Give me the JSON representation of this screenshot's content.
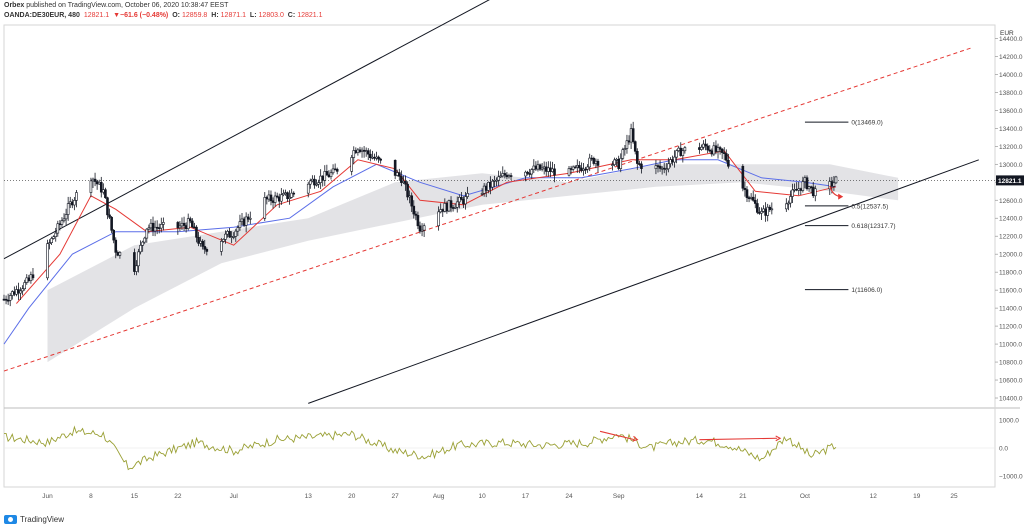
{
  "header": {
    "publisher": "Orbex",
    "published_text": "published on TradingView.com, October 06, 2020 10:38:47 EEST",
    "symbol": "OANDA:DE30EUR, 480",
    "last": "12821.1",
    "change": "▼−61.6 (−0.48%)",
    "open_label": "O:",
    "open": "12859.8",
    "high_label": "H:",
    "high": "12871.1",
    "low_label": "L:",
    "low": "12803.0",
    "close_label": "C:",
    "close": "12821.1"
  },
  "footer": {
    "brand": "TradingView"
  },
  "colors": {
    "candle": "#131722",
    "tenkan": "#e53935",
    "kijun": "#5b6ee8",
    "cloud": "#d9dadd",
    "redChannel": "#e53935",
    "blackChannel": "#131722",
    "oscillator": "#9aa035",
    "arrow": "#e53935",
    "priceTag": "#131722"
  },
  "chart_data": {
    "type": "candlestick",
    "symbol": "OANDA:DE30EUR",
    "timeframe": "480",
    "currency_label": "EUR",
    "y_ticks": [
      10400,
      10600,
      10800,
      11000,
      11200,
      11400,
      11600,
      11800,
      12000,
      12200,
      12400,
      12600,
      12800,
      13000,
      13200,
      13400,
      13600,
      13800,
      14000,
      14200,
      14400
    ],
    "y_tick_labels": [
      "10400.0",
      "10600.0",
      "10800.0",
      "11000.0",
      "11200.0",
      "11400.0",
      "11600.0",
      "11800.0",
      "12000.0",
      "12200.0",
      "12400.0",
      "12600.0",
      "12800.0",
      "13000.0",
      "13200.0",
      "13400.0",
      "13600.0",
      "13800.0",
      "14000.0",
      "14200.0",
      "14400.0"
    ],
    "ylim": [
      10300,
      14550
    ],
    "last_price_label": "12821.1",
    "last_price": 12821.1,
    "x_ticks": [
      {
        "label": "Jun",
        "date": "2020-06-01"
      },
      {
        "label": "8",
        "date": "2020-06-08"
      },
      {
        "label": "15",
        "date": "2020-06-15"
      },
      {
        "label": "22",
        "date": "2020-06-22"
      },
      {
        "label": "Jul",
        "date": "2020-07-01"
      },
      {
        "label": "13",
        "date": "2020-07-13"
      },
      {
        "label": "20",
        "date": "2020-07-20"
      },
      {
        "label": "27",
        "date": "2020-07-27"
      },
      {
        "label": "Aug",
        "date": "2020-08-03"
      },
      {
        "label": "10",
        "date": "2020-08-10"
      },
      {
        "label": "17",
        "date": "2020-08-17"
      },
      {
        "label": "24",
        "date": "2020-08-24"
      },
      {
        "label": "Sep",
        "date": "2020-09-01"
      },
      {
        "label": "14",
        "date": "2020-09-14"
      },
      {
        "label": "21",
        "date": "2020-09-21"
      },
      {
        "label": "Oct",
        "date": "2020-10-01"
      },
      {
        "label": "12",
        "date": "2020-10-12"
      },
      {
        "label": "19",
        "date": "2020-10-19"
      },
      {
        "label": "25",
        "date": "2020-10-25"
      }
    ],
    "path": [
      [
        "2020-05-25",
        11500
      ],
      [
        "2020-05-29",
        11700
      ],
      [
        "2020-06-02",
        12200
      ],
      [
        "2020-06-05",
        12600
      ],
      [
        "2020-06-08",
        12870
      ],
      [
        "2020-06-10",
        12700
      ],
      [
        "2020-06-12",
        12050
      ],
      [
        "2020-06-15",
        11850
      ],
      [
        "2020-06-17",
        12300
      ],
      [
        "2020-06-22",
        12300
      ],
      [
        "2020-06-24",
        12350
      ],
      [
        "2020-06-26",
        12050
      ],
      [
        "2020-07-01",
        12250
      ],
      [
        "2020-07-06",
        12600
      ],
      [
        "2020-07-10",
        12650
      ],
      [
        "2020-07-13",
        12800
      ],
      [
        "2020-07-17",
        12900
      ],
      [
        "2020-07-21",
        13200
      ],
      [
        "2020-07-24",
        13050
      ],
      [
        "2020-07-28",
        12850
      ],
      [
        "2020-07-31",
        12300
      ],
      [
        "2020-08-03",
        12500
      ],
      [
        "2020-08-07",
        12600
      ],
      [
        "2020-08-11",
        12750
      ],
      [
        "2020-08-14",
        12900
      ],
      [
        "2020-08-19",
        12950
      ],
      [
        "2020-08-24",
        12900
      ],
      [
        "2020-08-28",
        13050
      ],
      [
        "2020-09-01",
        13000
      ],
      [
        "2020-09-03",
        13350
      ],
      [
        "2020-09-04",
        13000
      ],
      [
        "2020-09-08",
        12950
      ],
      [
        "2020-09-11",
        13150
      ],
      [
        "2020-09-15",
        13200
      ],
      [
        "2020-09-18",
        13100
      ],
      [
        "2020-09-21",
        12750
      ],
      [
        "2020-09-24",
        12450
      ],
      [
        "2020-09-28",
        12600
      ],
      [
        "2020-10-01",
        12800
      ],
      [
        "2020-10-03",
        12650
      ],
      [
        "2020-10-06",
        12821
      ]
    ],
    "tenkan": [
      [
        "2020-05-27",
        11450
      ],
      [
        "2020-06-03",
        12000
      ],
      [
        "2020-06-08",
        12650
      ],
      [
        "2020-06-12",
        12500
      ],
      [
        "2020-06-17",
        12250
      ],
      [
        "2020-06-24",
        12300
      ],
      [
        "2020-07-01",
        12100
      ],
      [
        "2020-07-08",
        12550
      ],
      [
        "2020-07-15",
        12700
      ],
      [
        "2020-07-21",
        13050
      ],
      [
        "2020-07-27",
        12950
      ],
      [
        "2020-07-31",
        12600
      ],
      [
        "2020-08-07",
        12550
      ],
      [
        "2020-08-14",
        12800
      ],
      [
        "2020-08-24",
        12900
      ],
      [
        "2020-09-03",
        13050
      ],
      [
        "2020-09-10",
        13050
      ],
      [
        "2020-09-18",
        13150
      ],
      [
        "2020-09-23",
        12700
      ],
      [
        "2020-09-30",
        12650
      ],
      [
        "2020-10-06",
        12750
      ]
    ],
    "kijun": [
      [
        "2020-05-25",
        11000
      ],
      [
        "2020-05-29",
        11400
      ],
      [
        "2020-06-05",
        12000
      ],
      [
        "2020-06-12",
        12250
      ],
      [
        "2020-06-22",
        12250
      ],
      [
        "2020-07-01",
        12300
      ],
      [
        "2020-07-10",
        12400
      ],
      [
        "2020-07-17",
        12750
      ],
      [
        "2020-07-24",
        13000
      ],
      [
        "2020-07-31",
        12800
      ],
      [
        "2020-08-07",
        12650
      ],
      [
        "2020-08-17",
        12850
      ],
      [
        "2020-08-26",
        12850
      ],
      [
        "2020-09-03",
        12950
      ],
      [
        "2020-09-10",
        13050
      ],
      [
        "2020-09-17",
        13050
      ],
      [
        "2020-09-24",
        12850
      ],
      [
        "2020-10-01",
        12800
      ],
      [
        "2020-10-06",
        12750
      ]
    ],
    "cloud_top": [
      [
        "2020-06-01",
        11600
      ],
      [
        "2020-06-15",
        12100
      ],
      [
        "2020-06-29",
        12250
      ],
      [
        "2020-07-13",
        12400
      ],
      [
        "2020-07-27",
        12800
      ],
      [
        "2020-08-10",
        12900
      ],
      [
        "2020-08-24",
        12800
      ],
      [
        "2020-09-07",
        13000
      ],
      [
        "2020-09-21",
        13000
      ],
      [
        "2020-10-05",
        13000
      ],
      [
        "2020-10-16",
        12850
      ]
    ],
    "cloud_bottom": [
      [
        "2020-06-01",
        10800
      ],
      [
        "2020-06-15",
        11400
      ],
      [
        "2020-06-29",
        11900
      ],
      [
        "2020-07-13",
        12150
      ],
      [
        "2020-07-27",
        12350
      ],
      [
        "2020-08-10",
        12550
      ],
      [
        "2020-08-24",
        12650
      ],
      [
        "2020-09-07",
        12750
      ],
      [
        "2020-09-21",
        12800
      ],
      [
        "2020-10-05",
        12700
      ],
      [
        "2020-10-16",
        12600
      ]
    ],
    "black_channel_upper": [
      [
        "2020-05-25",
        11950
      ],
      [
        "2020-10-28",
        17700
      ]
    ],
    "black_channel_lower": [
      [
        "2020-07-13",
        10340
      ],
      [
        "2020-10-29",
        13050
      ]
    ],
    "red_channel": [
      [
        "2020-05-25",
        10700
      ],
      [
        "2020-10-28",
        14300
      ]
    ],
    "fibonacci": [
      {
        "level": "0",
        "price": 13469.0,
        "label": "0(13469.0)"
      },
      {
        "level": "0.5",
        "price": 12537.5,
        "label": "0.5(12537.5)"
      },
      {
        "level": "0.618",
        "price": 12317.7,
        "label": "0.618(12317.7)"
      },
      {
        "level": "1",
        "price": 11606.0,
        "label": "1(11606.0)"
      }
    ],
    "fib_range": [
      "2020-10-01",
      "2020-10-08"
    ],
    "forecast_arrow": [
      [
        "2020-10-05",
        12760
      ],
      [
        "2020-10-07",
        12640
      ]
    ],
    "oscillator": {
      "y_ticks": [
        1000,
        0,
        -1000
      ],
      "y_tick_labels": [
        "1000.0",
        "0.0",
        "−1000.0"
      ],
      "ylim": [
        -1400,
        1400
      ],
      "values": [
        [
          "2020-05-25",
          400
        ],
        [
          "2020-06-01",
          200
        ],
        [
          "2020-06-05",
          600
        ],
        [
          "2020-06-10",
          500
        ],
        [
          "2020-06-14",
          -700
        ],
        [
          "2020-06-18",
          -300
        ],
        [
          "2020-06-25",
          200
        ],
        [
          "2020-07-01",
          -100
        ],
        [
          "2020-07-08",
          300
        ],
        [
          "2020-07-14",
          400
        ],
        [
          "2020-07-20",
          500
        ],
        [
          "2020-07-27",
          -100
        ],
        [
          "2020-08-01",
          -300
        ],
        [
          "2020-08-06",
          100
        ],
        [
          "2020-08-13",
          200
        ],
        [
          "2020-08-20",
          100
        ],
        [
          "2020-08-27",
          200
        ],
        [
          "2020-09-01",
          500
        ],
        [
          "2020-09-06",
          0
        ],
        [
          "2020-09-10",
          200
        ],
        [
          "2020-09-15",
          300
        ],
        [
          "2020-09-19",
          100
        ],
        [
          "2020-09-24",
          -400
        ],
        [
          "2020-09-28",
          400
        ],
        [
          "2020-10-02",
          -300
        ],
        [
          "2020-10-06",
          100
        ]
      ],
      "arrows": [
        [
          [
            "2020-08-29",
            600
          ],
          [
            "2020-09-04",
            300
          ]
        ],
        [
          [
            "2020-09-14",
            300
          ],
          [
            "2020-09-27",
            350
          ]
        ]
      ]
    }
  }
}
